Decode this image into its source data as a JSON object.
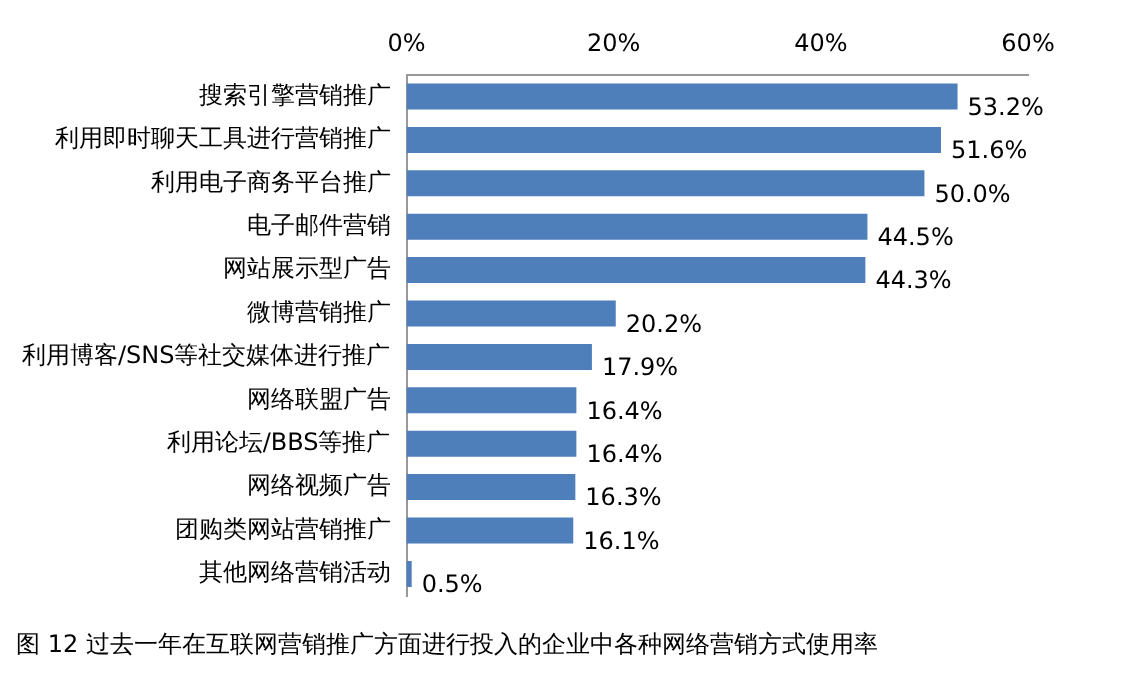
{
  "chart_data": {
    "type": "bar",
    "orientation": "horizontal",
    "title": "图 12 过去一年在互联网营销推广方面进行投入的企业中各种网络营销方式使用率",
    "categories": [
      "搜索引擎营销推广",
      "利用即时聊天工具进行营销推广",
      "利用电子商务平台推广",
      "电子邮件营销",
      "网站展示型广告",
      "微博营销推广",
      "利用博客/SNS等社交媒体进行推广",
      "网络联盟广告",
      "利用论坛/BBS等推广",
      "网络视频广告",
      "团购类网站营销推广",
      "其他网络营销活动"
    ],
    "values": [
      53.2,
      51.6,
      50.0,
      44.5,
      44.3,
      20.2,
      17.9,
      16.4,
      16.4,
      16.3,
      16.1,
      0.5
    ],
    "value_labels": [
      "53.2%",
      "51.6%",
      "50.0%",
      "44.5%",
      "44.3%",
      "20.2%",
      "17.9%",
      "16.4%",
      "16.4%",
      "16.3%",
      "16.1%",
      "0.5%"
    ],
    "color": "#4f7fbb",
    "xlim": [
      0,
      60
    ],
    "xticks": [
      {
        "value": 0,
        "label": "0%"
      },
      {
        "value": 20,
        "label": "20%"
      },
      {
        "value": 40,
        "label": "40%"
      },
      {
        "value": 60,
        "label": "60%"
      }
    ],
    "grid": false,
    "legend": false
  }
}
